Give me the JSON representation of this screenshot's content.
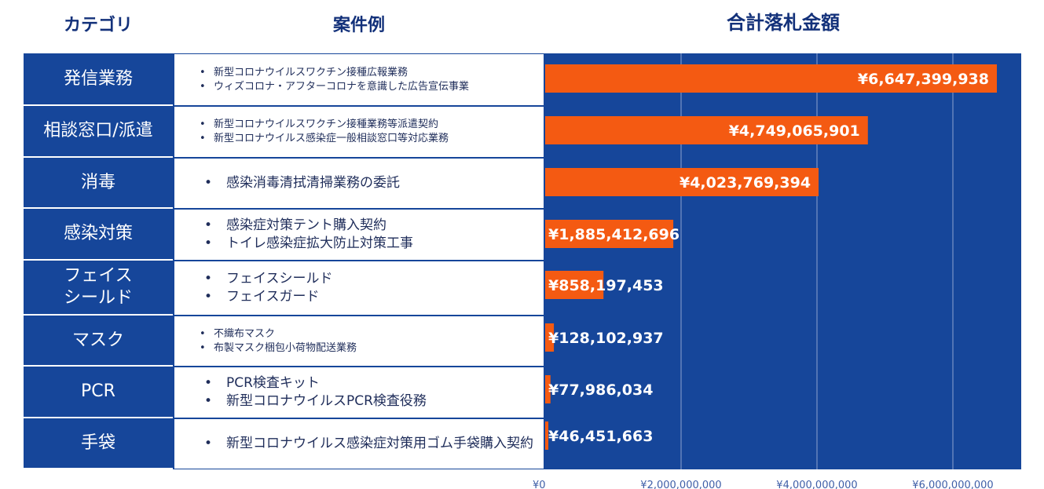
{
  "headers": {
    "category": "カテゴリ",
    "examples": "案件例",
    "amount": "合計落札金額"
  },
  "rows": [
    {
      "category": "発信業務",
      "examples": [
        "新型コロナウイルスワクチン接種広報業務",
        "ウィズコロナ・アフターコロナを意識した広告宣伝事業"
      ]
    },
    {
      "category": "相談窓口/派遣",
      "examples": [
        "新型コロナウイルスワクチン接種業務等派遣契約",
        "新型コロナウイルス感染症一般相談窓口等対応業務"
      ]
    },
    {
      "category": "消毒",
      "examples": [
        "感染消毒清拭清掃業務の委託"
      ]
    },
    {
      "category": "感染対策",
      "examples": [
        "感染症対策テント購入契約",
        "トイレ感染症拡大防止対策工事"
      ]
    },
    {
      "category": "フェイスシールド",
      "category_lines": [
        "フェイス",
        "シールド"
      ],
      "examples": [
        "フェイスシールド",
        "フェイスガード"
      ]
    },
    {
      "category": "マスク",
      "examples": [
        "不織布マスク",
        "布製マスク梱包小荷物配送業務"
      ]
    },
    {
      "category": "PCR",
      "examples": [
        "PCR検査キット",
        "新型コロナウイルスPCR検査役務"
      ]
    },
    {
      "category": "手袋",
      "examples": [
        "新型コロナウイルス感染症対策用ゴム手袋購入契約"
      ]
    }
  ],
  "chart_data": {
    "type": "bar",
    "orientation": "horizontal",
    "title": "合計落札金額",
    "categories": [
      "発信業務",
      "相談窓口/派遣",
      "消毒",
      "感染対策",
      "フェイスシールド",
      "マスク",
      "PCR",
      "手袋"
    ],
    "values": [
      6647399938,
      4749065901,
      4023769394,
      1885412696,
      858197453,
      128102937,
      77986034,
      46451663
    ],
    "labels": [
      "¥6,647,399,938",
      "¥4,749,065,901",
      "¥4,023,769,394",
      "¥1,885,412,696",
      "¥858,197,453",
      "¥128,102,937",
      "¥77,986,034",
      "¥46,451,663"
    ],
    "xlim": [
      0,
      7000000000
    ],
    "xticks": [
      0,
      2000000000,
      4000000000,
      6000000000
    ],
    "xtick_labels": [
      "¥0",
      "¥2,000,000,000",
      "¥4,000,000,000",
      "¥6,000,000,000"
    ],
    "grid": true,
    "colors": {
      "bar": "#f45a12",
      "background": "#16469a",
      "grid": "#8ea3cf",
      "label": "#ffffff",
      "tick": "#3f5fa8"
    }
  }
}
